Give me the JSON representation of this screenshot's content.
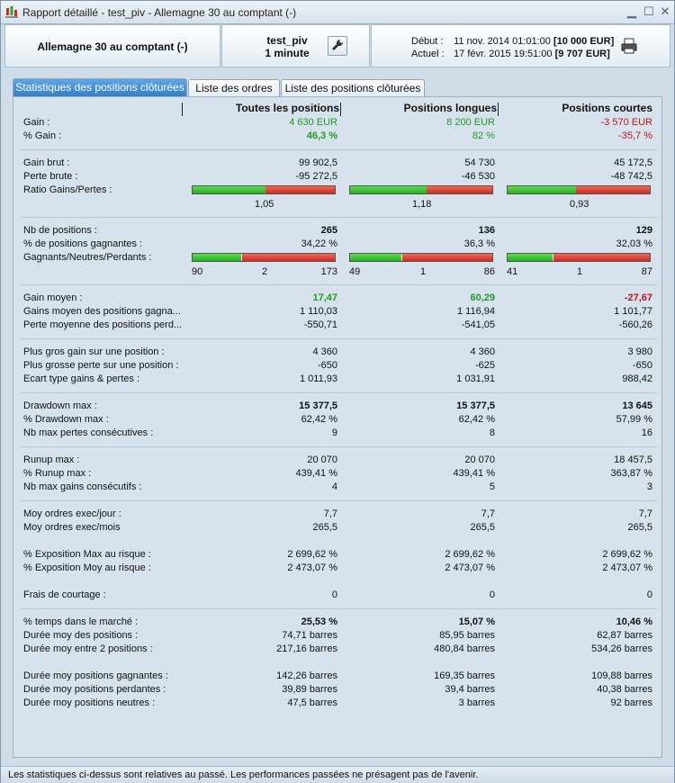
{
  "window": {
    "title": "Rapport détaillé - test_piv - Allemagne 30 au comptant (-)"
  },
  "header": {
    "instrument": "Allemagne 30 au comptant (-)",
    "strategy_name": "test_piv",
    "timeframe": "1 minute",
    "start_label": "Début :",
    "start_date": "11 nov. 2014 01:01:00",
    "start_capital": "[10 000 EUR]",
    "current_label": "Actuel :",
    "current_date": "17 févr. 2015 19:51:00",
    "current_capital": "[9 707 EUR]"
  },
  "tabs": [
    {
      "label": "Statistiques des positions clôturées"
    },
    {
      "label": "Liste des ordres"
    },
    {
      "label": "Liste des positions clôturées"
    }
  ],
  "columns": {
    "all": "Toutes les positions",
    "long": "Positions longues",
    "short": "Positions courtes"
  },
  "rows": {
    "gain": {
      "label": "Gain :",
      "all": "4 630 EUR",
      "long": "8 200 EUR",
      "short": "-3 570 EUR"
    },
    "pct_gain": {
      "label": "% Gain :",
      "all": "46,3 %",
      "long": "82 %",
      "short": "-35,7 %"
    },
    "gain_brut": {
      "label": "Gain brut :",
      "all": "99 902,5",
      "long": "54 730",
      "short": "45 172,5"
    },
    "perte_brute": {
      "label": "Perte brute :",
      "all": "-95 272,5",
      "long": "-46 530",
      "short": "-48 742,5"
    },
    "ratio": {
      "label": "Ratio Gains/Pertes :",
      "all": "1,05",
      "long": "1,18",
      "short": "0,93"
    },
    "nb_positions": {
      "label": "Nb de positions :",
      "all": "265",
      "long": "136",
      "short": "129"
    },
    "pct_gagnantes": {
      "label": "% de positions gagnantes :",
      "all": "34,22 %",
      "long": "36,3 %",
      "short": "32,03 %"
    },
    "gnp": {
      "label": "Gagnants/Neutres/Perdants :",
      "all": {
        "g": "90",
        "n": "2",
        "p": "173"
      },
      "long": {
        "g": "49",
        "n": "1",
        "p": "86"
      },
      "short": {
        "g": "41",
        "n": "1",
        "p": "87"
      }
    },
    "gain_moyen": {
      "label": "Gain moyen :",
      "all": "17,47",
      "long": "60,29",
      "short": "-27,67"
    },
    "gains_moyen_gagn": {
      "label": "Gains moyen des positions gagna...",
      "all": "1 110,03",
      "long": "1 116,94",
      "short": "1 101,77"
    },
    "perte_moyenne": {
      "label": "Perte moyenne des positions perd...",
      "all": "-550,71",
      "long": "-541,05",
      "short": "-560,26"
    },
    "plus_gros_gain": {
      "label": "Plus gros gain sur une position :",
      "all": "4 360",
      "long": "4 360",
      "short": "3 980"
    },
    "plus_grosse_perte": {
      "label": "Plus grosse perte sur une position :",
      "all": "-650",
      "long": "-625",
      "short": "-650"
    },
    "ecart_type": {
      "label": "Ecart type gains & pertes :",
      "all": "1 011,93",
      "long": "1 031,91",
      "short": "988,42"
    },
    "drawdown": {
      "label": "Drawdown max :",
      "all": "15 377,5",
      "long": "15 377,5",
      "short": "13 645"
    },
    "pct_drawdown": {
      "label": "% Drawdown max :",
      "all": "62,42 %",
      "long": "62,42 %",
      "short": "57,99 %"
    },
    "nb_pertes_consec": {
      "label": "Nb max pertes consécutives :",
      "all": "9",
      "long": "8",
      "short": "16"
    },
    "runup": {
      "label": "Runup max :",
      "all": "20 070",
      "long": "20 070",
      "short": "18 457,5"
    },
    "pct_runup": {
      "label": "% Runup max :",
      "all": "439,41 %",
      "long": "439,41 %",
      "short": "363,87 %"
    },
    "nb_gains_consec": {
      "label": "Nb max gains consécutifs :",
      "all": "4",
      "long": "5",
      "short": "3"
    },
    "ordres_jour": {
      "label": "Moy ordres exec/jour :",
      "all": "7,7",
      "long": "7,7",
      "short": "7,7"
    },
    "ordres_mois": {
      "label": "Moy ordres exec/mois",
      "all": "265,5",
      "long": "265,5",
      "short": "265,5"
    },
    "expo_max": {
      "label": "% Exposition Max au risque :",
      "all": "2 699,62 %",
      "long": "2 699,62 %",
      "short": "2 699,62 %"
    },
    "expo_moy": {
      "label": "% Exposition Moy au risque :",
      "all": "2 473,07 %",
      "long": "2 473,07 %",
      "short": "2 473,07 %"
    },
    "frais": {
      "label": "Frais de courtage :",
      "all": "0",
      "long": "0",
      "short": "0"
    },
    "temps_marche": {
      "label": "% temps dans le marché :",
      "all": "25,53 %",
      "long": "15,07 %",
      "short": "10,46 %"
    },
    "duree_positions": {
      "label": "Durée moy des positions :",
      "all": "74,71 barres",
      "long": "85,95 barres",
      "short": "62,87 barres"
    },
    "duree_entre": {
      "label": "Durée moy entre 2 positions :",
      "all": "217,16 barres",
      "long": "480,84 barres",
      "short": "534,26 barres"
    },
    "duree_gagnantes": {
      "label": "Durée moy positions gagnantes :",
      "all": "142,26 barres",
      "long": "169,35 barres",
      "short": "109,88 barres"
    },
    "duree_perdantes": {
      "label": "Durée moy positions perdantes :",
      "all": "39,89 barres",
      "long": "39,4 barres",
      "short": "40,38 barres"
    },
    "duree_neutres": {
      "label": "Durée moy positions neutres :",
      "all": "47,5 barres",
      "long": "3 barres",
      "short": "92 barres"
    }
  },
  "bars": {
    "ratio": {
      "all": 0.512,
      "long": 0.541,
      "short": 0.481
    },
    "gnp": {
      "all": {
        "g": 90,
        "n": 2,
        "p": 173
      },
      "long": {
        "g": 49,
        "n": 1,
        "p": 86
      },
      "short": {
        "g": 41,
        "n": 1,
        "p": 87
      }
    }
  },
  "colors": {
    "gain": "#1f9a1f",
    "loss": "#c0151b"
  },
  "icons": [
    "app-chart-icon",
    "wrench-icon",
    "printer-icon",
    "minimize-icon",
    "maximize-icon",
    "close-icon"
  ],
  "status": {
    "text": "Les statistiques ci-dessus sont relatives au passé. Les performances passées ne présagent pas de l'avenir."
  }
}
